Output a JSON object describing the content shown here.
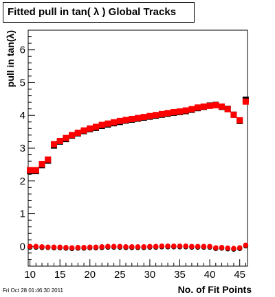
{
  "title": "Fitted pull in tan( λ )  Global Tracks",
  "footer": "Fri Oct 28 01:46:30 2011",
  "chart_data": {
    "type": "scatter",
    "title": "Fitted pull in tan( λ )  Global Tracks",
    "xlabel": "No. of Fit Points",
    "ylabel": "pull in tan(λ)",
    "xlim": [
      9.7,
      46.3
    ],
    "ylim": [
      -0.6,
      6.6
    ],
    "x_ticks": [
      10,
      15,
      20,
      25,
      30,
      35,
      40,
      45
    ],
    "y_ticks": [
      0,
      1,
      2,
      3,
      4,
      5,
      6
    ],
    "grid": false,
    "x": [
      10,
      11,
      12,
      13,
      14,
      15,
      16,
      17,
      18,
      19,
      20,
      21,
      22,
      23,
      24,
      25,
      26,
      27,
      28,
      29,
      30,
      31,
      32,
      33,
      34,
      35,
      36,
      37,
      38,
      39,
      40,
      41,
      42,
      43,
      44,
      45,
      46
    ],
    "series": [
      {
        "marker": "square",
        "color": "#000000",
        "values": [
          2.3,
          2.3,
          2.48,
          2.62,
          3.08,
          3.2,
          3.28,
          3.38,
          3.45,
          3.52,
          3.58,
          3.62,
          3.68,
          3.72,
          3.76,
          3.8,
          3.84,
          3.87,
          3.9,
          3.93,
          3.96,
          3.99,
          4.02,
          4.05,
          4.08,
          4.1,
          4.13,
          4.17,
          4.22,
          4.26,
          4.3,
          4.32,
          4.26,
          4.2,
          4.02,
          3.83,
          4.48
        ]
      },
      {
        "marker": "square",
        "color": "#ff0000",
        "values": [
          2.33,
          2.33,
          2.51,
          2.65,
          3.12,
          3.22,
          3.31,
          3.4,
          3.47,
          3.54,
          3.6,
          3.65,
          3.71,
          3.75,
          3.79,
          3.83,
          3.86,
          3.89,
          3.92,
          3.95,
          3.98,
          4.01,
          4.04,
          4.07,
          4.1,
          4.12,
          4.15,
          4.19,
          4.24,
          4.27,
          4.29,
          4.31,
          4.27,
          4.19,
          4.02,
          3.85,
          4.42
        ]
      },
      {
        "marker": "circle",
        "color": "#000000",
        "values": [
          -0.02,
          -0.02,
          -0.03,
          -0.03,
          -0.04,
          -0.04,
          -0.05,
          -0.06,
          -0.05,
          -0.05,
          -0.04,
          -0.04,
          -0.03,
          -0.02,
          -0.02,
          -0.02,
          -0.03,
          -0.03,
          -0.03,
          -0.03,
          -0.02,
          -0.02,
          -0.01,
          -0.01,
          -0.01,
          -0.01,
          -0.01,
          -0.02,
          -0.02,
          -0.02,
          -0.02,
          -0.06,
          -0.05,
          -0.07,
          -0.08,
          -0.06,
          0.02
        ]
      },
      {
        "marker": "circle",
        "color": "#ff0000",
        "values": [
          0.0,
          0.0,
          -0.01,
          -0.02,
          -0.02,
          -0.02,
          -0.03,
          -0.04,
          -0.03,
          -0.03,
          -0.02,
          -0.02,
          -0.01,
          0.0,
          0.0,
          0.0,
          -0.01,
          -0.01,
          -0.01,
          -0.01,
          0.0,
          0.0,
          0.01,
          0.01,
          0.01,
          0.01,
          0.01,
          0.0,
          0.0,
          0.0,
          0.0,
          -0.04,
          -0.03,
          -0.05,
          -0.06,
          -0.04,
          0.04
        ]
      }
    ]
  }
}
